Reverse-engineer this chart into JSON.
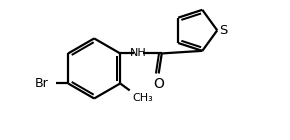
{
  "background_color": "#ffffff",
  "line_color": "#000000",
  "line_width": 1.6,
  "fig_width": 2.9,
  "fig_height": 1.4,
  "dpi": 100,
  "xlim": [
    -0.68,
    0.78
  ],
  "ylim": [
    -0.48,
    0.42
  ]
}
